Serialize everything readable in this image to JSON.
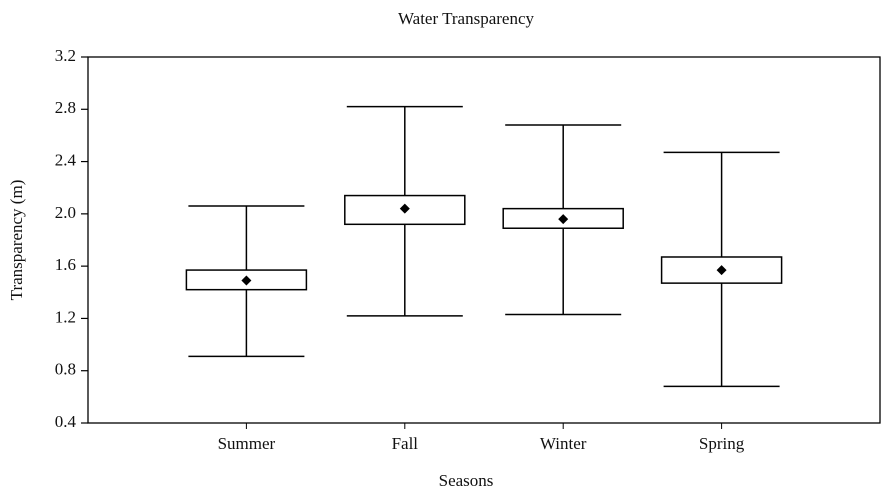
{
  "chart_data": {
    "type": "box",
    "title": "Water Transparency",
    "xlabel": "Seasons",
    "ylabel": "Transparency (m)",
    "categories": [
      "Summer",
      "Fall",
      "Winter",
      "Spring"
    ],
    "whisker_low": [
      0.91,
      1.22,
      1.23,
      0.68
    ],
    "box_low": [
      1.42,
      1.92,
      1.89,
      1.47
    ],
    "mean": [
      1.49,
      2.04,
      1.96,
      1.57
    ],
    "box_high": [
      1.57,
      2.14,
      2.04,
      1.67
    ],
    "whisker_high": [
      2.06,
      2.82,
      2.68,
      2.47
    ],
    "color": "#000000",
    "ylim": [
      0.4,
      3.2
    ],
    "yticks": [
      0.4,
      0.8,
      1.2,
      1.6,
      {
        "value": 2,
        "label": "2.0"
      },
      2.4,
      2.8,
      3.2
    ]
  }
}
